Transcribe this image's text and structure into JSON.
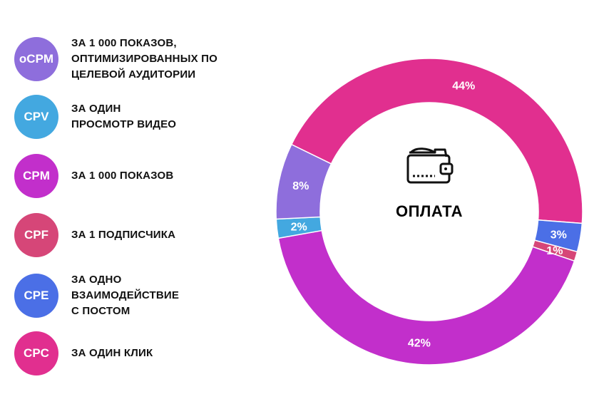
{
  "legend": [
    {
      "badge": "oCPM",
      "text": "ЗА 1 000 ПОКАЗОВ,\nОПТИМИЗИРОВАННЫХ ПО\nЦЕЛЕВОЙ АУДИТОРИИ",
      "color": "#8E6EDC"
    },
    {
      "badge": "CPV",
      "text": "ЗА ОДИН\nПРОСМОТР ВИДЕО",
      "color": "#43A8E0"
    },
    {
      "badge": "CPM",
      "text": "ЗА 1 000  ПОКАЗОВ",
      "color": "#C22FCB"
    },
    {
      "badge": "CPF",
      "text": "ЗА 1 ПОДПИСЧИКА",
      "color": "#D64678"
    },
    {
      "badge": "CPE",
      "text": "ЗА ОДНО\nВЗАИМОДЕЙСТВИЕ\nС ПОСТОМ",
      "color": "#4B6FE6"
    },
    {
      "badge": "CPC",
      "text": "ЗА ОДИН КЛИК",
      "color": "#E12F8F"
    }
  ],
  "center": {
    "title": "ОПЛАТА",
    "icon": "wallet-icon"
  },
  "chart_data": {
    "type": "pie",
    "donut": true,
    "slices": [
      {
        "value": 44,
        "label": "44%",
        "color": "#E12F8F"
      },
      {
        "value": 3,
        "label": "3%",
        "color": "#4B6FE6"
      },
      {
        "value": 1,
        "label": "1%",
        "color": "#D64678"
      },
      {
        "value": 42,
        "label": "42%",
        "color": "#C22FCB"
      },
      {
        "value": 2,
        "label": "2%",
        "color": "#43A8E0"
      },
      {
        "value": 8,
        "label": "8%",
        "color": "#8E6EDC"
      }
    ]
  }
}
